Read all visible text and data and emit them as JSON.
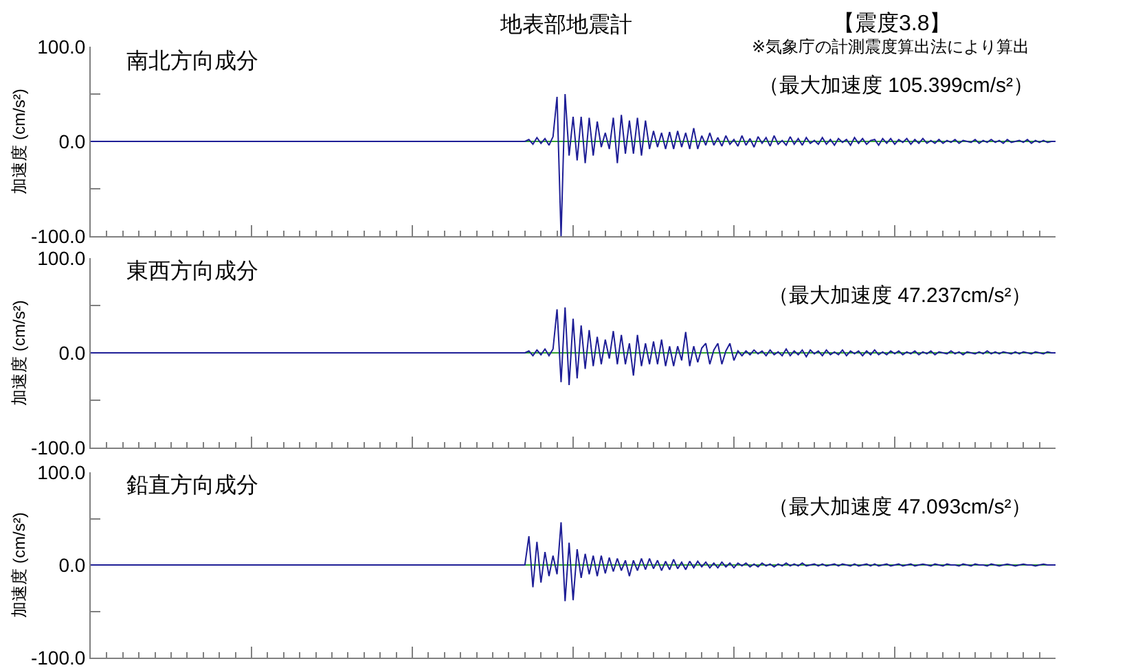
{
  "chart_data": [
    {
      "type": "line",
      "title": "南北方向成分",
      "ylabel": "加速度 (cm/s²)",
      "annotations": [
        "地表部地震計",
        "【震度3.8】",
        "※気象庁の計測震度算出法により算出",
        "（最大加速度 105.399cm/s²）"
      ],
      "tick_labels": "y",
      "ylim": [
        -100,
        100
      ],
      "yticks": [
        {
          "value": 100,
          "label": "100.0"
        },
        {
          "value": 50,
          "label": null
        },
        {
          "value": 0,
          "label": "0.0"
        },
        {
          "value": -50,
          "label": null
        },
        {
          "value": -100,
          "label": "-100.0"
        }
      ],
      "ref_lines": [
        {
          "axis": "y",
          "value": 0,
          "color": "#30a030"
        }
      ],
      "color": "#1e1e96",
      "categories": [
        null,
        null,
        null,
        null,
        null,
        null,
        null,
        null,
        null,
        null,
        null,
        null,
        null,
        null,
        null,
        null,
        null,
        null,
        null,
        null,
        null,
        null,
        null,
        null,
        null,
        null,
        null,
        null,
        null,
        null,
        null,
        null,
        null,
        null,
        null,
        null,
        null,
        null,
        null,
        null,
        null,
        null,
        null,
        null,
        null,
        null,
        null,
        null,
        null,
        null,
        null,
        null,
        null,
        null,
        null,
        null,
        null,
        null,
        null,
        null,
        null,
        null,
        null,
        null,
        null,
        null,
        null,
        null,
        null,
        null,
        null,
        null,
        null,
        null,
        null,
        null,
        null,
        null,
        null,
        null,
        null,
        null,
        null,
        null,
        null,
        null,
        null,
        null,
        null,
        null,
        null,
        null,
        null,
        null,
        null,
        null,
        null,
        null,
        null,
        null,
        null,
        null,
        null,
        null,
        null,
        null,
        null,
        null,
        null,
        null,
        null,
        null,
        null,
        null,
        null,
        null,
        null,
        null,
        null,
        null,
        null,
        null,
        null,
        null,
        null,
        null,
        null,
        null,
        null,
        null,
        null,
        null,
        null,
        null,
        null,
        null,
        null,
        null,
        null,
        null,
        null,
        null,
        null,
        null,
        null,
        null,
        null,
        null,
        null,
        null,
        null,
        null,
        null,
        null,
        null,
        null,
        null,
        null,
        null,
        null,
        null,
        null,
        null,
        null,
        null,
        null,
        null,
        null,
        null,
        null,
        null,
        null,
        null,
        null,
        null,
        null,
        null,
        null,
        null,
        null,
        null,
        null,
        null,
        null,
        null,
        null,
        null,
        null,
        null,
        null,
        null,
        null,
        null,
        null,
        null,
        null,
        null,
        null,
        null,
        null,
        null,
        null,
        null,
        null,
        null,
        null,
        null,
        null,
        null,
        null,
        null,
        null,
        null,
        null,
        null,
        null,
        null,
        null,
        null,
        null,
        null,
        null,
        null,
        null,
        null,
        null,
        null,
        null,
        null,
        null,
        null,
        null,
        null,
        null,
        null,
        null,
        null,
        null,
        null,
        null,
        null
      ],
      "values": [
        0,
        0,
        0,
        0,
        0,
        0,
        0,
        0,
        0,
        0,
        0,
        0,
        0,
        0,
        0,
        0,
        0,
        0,
        0,
        0,
        0,
        0,
        0,
        0,
        0,
        0,
        0,
        0,
        0,
        0,
        0,
        0,
        0,
        0,
        0,
        0,
        0,
        0,
        0,
        0,
        0,
        0,
        0,
        0,
        0,
        0,
        0,
        0,
        0,
        0,
        0,
        0,
        0,
        0,
        0,
        0,
        0,
        0,
        0,
        0,
        0,
        0,
        0,
        0,
        0,
        0,
        0,
        0,
        0,
        0,
        0,
        0,
        0,
        0,
        0,
        0,
        0,
        0,
        0,
        0,
        0,
        0,
        0,
        0,
        0,
        0,
        0,
        0,
        0,
        0,
        0,
        0,
        0,
        0,
        0,
        0,
        0,
        0,
        0,
        0,
        0,
        0,
        0,
        0,
        0,
        0,
        0,
        0,
        0,
        2,
        -3,
        4,
        -2,
        3,
        -4,
        5,
        47,
        -100,
        50,
        -15,
        26,
        -20,
        26,
        -23,
        25,
        -15,
        21,
        -6,
        9,
        -8,
        25,
        -23,
        28,
        -13,
        22,
        -13,
        25,
        -15,
        22,
        -8,
        11,
        -6,
        9,
        -8,
        10,
        -8,
        11,
        -6,
        9,
        -8,
        14,
        -8,
        6,
        -4,
        9,
        -4,
        4,
        -5,
        6,
        -3,
        2,
        -5,
        6,
        -4,
        3,
        -6,
        5,
        -2,
        4,
        -5,
        6,
        -3,
        1,
        -4,
        5,
        -3,
        3,
        -4,
        4,
        -2,
        1,
        -3,
        4,
        -3,
        2,
        -4,
        3,
        -1,
        2,
        -4,
        4,
        -2,
        3,
        -3,
        1,
        2,
        -4,
        3,
        -2,
        3,
        -3,
        2,
        -1,
        3,
        -3,
        2,
        -2,
        3,
        -2,
        1,
        -2,
        2,
        -2,
        1,
        -1,
        2,
        -2,
        1,
        0,
        -1,
        2,
        -2,
        1,
        -1,
        2,
        -1,
        1,
        -2,
        2,
        -1,
        0,
        1,
        -1,
        2,
        -2,
        1,
        -1,
        1,
        -1,
        0,
        0
      ]
    },
    {
      "type": "line",
      "title": "東西方向成分",
      "ylabel": "加速度 (cm/s²)",
      "annotations": [
        "（最大加速度 47.237cm/s²）"
      ],
      "tick_labels": "y",
      "ylim": [
        -100,
        100
      ],
      "yticks": [
        {
          "value": 100,
          "label": "100.0"
        },
        {
          "value": 50,
          "label": null
        },
        {
          "value": 0,
          "label": "0.0"
        },
        {
          "value": -50,
          "label": null
        },
        {
          "value": -100,
          "label": "-100.0"
        }
      ],
      "ref_lines": [
        {
          "axis": "y",
          "value": 0,
          "color": "#30a030"
        }
      ],
      "color": "#1e1e96",
      "categories": [
        null,
        null,
        null,
        null,
        null,
        null,
        null,
        null,
        null,
        null,
        null,
        null,
        null,
        null,
        null,
        null,
        null,
        null,
        null,
        null,
        null,
        null,
        null,
        null,
        null,
        null,
        null,
        null,
        null,
        null,
        null,
        null,
        null,
        null,
        null,
        null,
        null,
        null,
        null,
        null,
        null,
        null,
        null,
        null,
        null,
        null,
        null,
        null,
        null,
        null,
        null,
        null,
        null,
        null,
        null,
        null,
        null,
        null,
        null,
        null,
        null,
        null,
        null,
        null,
        null,
        null,
        null,
        null,
        null,
        null,
        null,
        null,
        null,
        null,
        null,
        null,
        null,
        null,
        null,
        null,
        null,
        null,
        null,
        null,
        null,
        null,
        null,
        null,
        null,
        null,
        null,
        null,
        null,
        null,
        null,
        null,
        null,
        null,
        null,
        null,
        null,
        null,
        null,
        null,
        null,
        null,
        null,
        null,
        null,
        null,
        null,
        null,
        null,
        null,
        null,
        null,
        null,
        null,
        null,
        null,
        null,
        null,
        null,
        null,
        null,
        null,
        null,
        null,
        null,
        null,
        null,
        null,
        null,
        null,
        null,
        null,
        null,
        null,
        null,
        null,
        null,
        null,
        null,
        null,
        null,
        null,
        null,
        null,
        null,
        null,
        null,
        null,
        null,
        null,
        null,
        null,
        null,
        null,
        null,
        null,
        null,
        null,
        null,
        null,
        null,
        null,
        null,
        null,
        null,
        null,
        null,
        null,
        null,
        null,
        null,
        null,
        null,
        null,
        null,
        null,
        null,
        null,
        null,
        null,
        null,
        null,
        null,
        null,
        null,
        null,
        null,
        null,
        null,
        null,
        null,
        null,
        null,
        null,
        null,
        null,
        null,
        null,
        null,
        null,
        null,
        null,
        null,
        null,
        null,
        null,
        null,
        null,
        null,
        null,
        null,
        null,
        null,
        null,
        null,
        null,
        null,
        null,
        null,
        null,
        null,
        null,
        null,
        null,
        null,
        null,
        null,
        null,
        null,
        null,
        null,
        null,
        null,
        null,
        null,
        null,
        null
      ],
      "values": [
        0,
        0,
        0,
        0,
        0,
        0,
        0,
        0,
        0,
        0,
        0,
        0,
        0,
        0,
        0,
        0,
        0,
        0,
        0,
        0,
        0,
        0,
        0,
        0,
        0,
        0,
        0,
        0,
        0,
        0,
        0,
        0,
        0,
        0,
        0,
        0,
        0,
        0,
        0,
        0,
        0,
        0,
        0,
        0,
        0,
        0,
        0,
        0,
        0,
        0,
        0,
        0,
        0,
        0,
        0,
        0,
        0,
        0,
        0,
        0,
        0,
        0,
        0,
        0,
        0,
        0,
        0,
        0,
        0,
        0,
        0,
        0,
        0,
        0,
        0,
        0,
        0,
        0,
        0,
        0,
        0,
        0,
        0,
        0,
        0,
        0,
        0,
        0,
        0,
        0,
        0,
        0,
        0,
        0,
        0,
        0,
        0,
        0,
        0,
        0,
        0,
        0,
        0,
        0,
        0,
        0,
        0,
        0,
        0,
        2,
        -3,
        3,
        -2,
        4,
        -3,
        4,
        46,
        -31,
        48,
        -34,
        36,
        -27,
        29,
        -17,
        24,
        -14,
        17,
        -12,
        14,
        -6,
        23,
        -12,
        19,
        -12,
        10,
        -24,
        19,
        -14,
        10,
        -12,
        12,
        -12,
        14,
        -14,
        7,
        -14,
        7,
        -8,
        22,
        -14,
        7,
        -10,
        5,
        10,
        -12,
        3,
        10,
        -12,
        2,
        10,
        -8,
        2,
        -3,
        2,
        -2,
        3,
        -1,
        2,
        -3,
        3,
        -2,
        1,
        -3,
        4,
        -3,
        2,
        -2,
        3,
        -4,
        3,
        -1,
        2,
        -3,
        3,
        -2,
        1,
        -2,
        3,
        -3,
        2,
        -1,
        2,
        -3,
        2,
        -2,
        3,
        -2,
        1,
        -2,
        2,
        -1,
        2,
        -2,
        1,
        -1,
        2,
        -2,
        1,
        -1,
        2,
        -2,
        1,
        0,
        -1,
        2,
        -1,
        1,
        -2,
        1,
        0,
        -1,
        1,
        -1,
        2,
        -1,
        1,
        -1,
        1,
        0,
        -1,
        1,
        -1,
        1,
        0,
        -1,
        1,
        0,
        -1,
        1,
        0,
        0
      ]
    },
    {
      "type": "line",
      "title": "鉛直方向成分",
      "ylabel": "加速度 (cm/s²)",
      "annotations": [
        "（最大加速度 47.093cm/s²）"
      ],
      "tick_labels": "y",
      "ylim": [
        -100,
        100
      ],
      "yticks": [
        {
          "value": 100,
          "label": "100.0"
        },
        {
          "value": 50,
          "label": null
        },
        {
          "value": 0,
          "label": "0.0"
        },
        {
          "value": -50,
          "label": null
        },
        {
          "value": -100,
          "label": "-100.0"
        }
      ],
      "ref_lines": [
        {
          "axis": "y",
          "value": 0,
          "color": "#30a030"
        }
      ],
      "color": "#1e1e96",
      "categories": [
        null,
        null,
        null,
        null,
        null,
        null,
        null,
        null,
        null,
        null,
        null,
        null,
        null,
        null,
        null,
        null,
        null,
        null,
        null,
        null,
        null,
        null,
        null,
        null,
        null,
        null,
        null,
        null,
        null,
        null,
        null,
        null,
        null,
        null,
        null,
        null,
        null,
        null,
        null,
        null,
        null,
        null,
        null,
        null,
        null,
        null,
        null,
        null,
        null,
        null,
        null,
        null,
        null,
        null,
        null,
        null,
        null,
        null,
        null,
        null,
        null,
        null,
        null,
        null,
        null,
        null,
        null,
        null,
        null,
        null,
        null,
        null,
        null,
        null,
        null,
        null,
        null,
        null,
        null,
        null,
        null,
        null,
        null,
        null,
        null,
        null,
        null,
        null,
        null,
        null,
        null,
        null,
        null,
        null,
        null,
        null,
        null,
        null,
        null,
        null,
        null,
        null,
        null,
        null,
        null,
        null,
        null,
        null,
        null,
        null,
        null,
        null,
        null,
        null,
        null,
        null,
        null,
        null,
        null,
        null,
        null,
        null,
        null,
        null,
        null,
        null,
        null,
        null,
        null,
        null,
        null,
        null,
        null,
        null,
        null,
        null,
        null,
        null,
        null,
        null,
        null,
        null,
        null,
        null,
        null,
        null,
        null,
        null,
        null,
        null,
        null,
        null,
        null,
        null,
        null,
        null,
        null,
        null,
        null,
        null,
        null,
        null,
        null,
        null,
        null,
        null,
        null,
        null,
        null,
        null,
        null,
        null,
        null,
        null,
        null,
        null,
        null,
        null,
        null,
        null,
        null,
        null,
        null,
        null,
        null,
        null,
        null,
        null,
        null,
        null,
        null,
        null,
        null,
        null,
        null,
        null,
        null,
        null,
        null,
        null,
        null,
        null,
        null,
        null,
        null,
        null,
        null,
        null,
        null,
        null,
        null,
        null,
        null,
        null,
        null,
        null,
        null,
        null,
        null,
        null,
        null,
        null,
        null,
        null,
        null,
        null,
        null,
        null,
        null,
        null,
        null,
        null,
        null,
        null,
        null,
        null,
        null,
        null,
        null,
        null,
        null
      ],
      "values": [
        0,
        0,
        0,
        0,
        0,
        0,
        0,
        0,
        0,
        0,
        0,
        0,
        0,
        0,
        0,
        0,
        0,
        0,
        0,
        0,
        0,
        0,
        0,
        0,
        0,
        0,
        0,
        0,
        0,
        0,
        0,
        0,
        0,
        0,
        0,
        0,
        0,
        0,
        0,
        0,
        0,
        0,
        0,
        0,
        0,
        0,
        0,
        0,
        0,
        0,
        0,
        0,
        0,
        0,
        0,
        0,
        0,
        0,
        0,
        0,
        0,
        0,
        0,
        0,
        0,
        0,
        0,
        0,
        0,
        0,
        0,
        0,
        0,
        0,
        0,
        0,
        0,
        0,
        0,
        0,
        0,
        0,
        0,
        0,
        0,
        0,
        0,
        0,
        0,
        0,
        0,
        0,
        0,
        0,
        0,
        0,
        0,
        0,
        0,
        0,
        0,
        0,
        0,
        0,
        0,
        0,
        0,
        0,
        0,
        31,
        -24,
        25,
        -19,
        14,
        -12,
        10,
        -10,
        46,
        -39,
        24,
        -38,
        17,
        -14,
        12,
        -10,
        10,
        -12,
        10,
        -9,
        8,
        -7,
        7,
        -6,
        5,
        -12,
        5,
        -6,
        7,
        -5,
        7,
        -4,
        5,
        -6,
        4,
        -5,
        6,
        -4,
        3,
        -5,
        4,
        -3,
        4,
        -2,
        3,
        -3,
        2,
        -3,
        3,
        -2,
        2,
        -3,
        2,
        -1,
        2,
        -2,
        1,
        -2,
        2,
        -1,
        1,
        -2,
        1,
        -1,
        2,
        -1,
        1,
        -1,
        2,
        -1,
        0,
        1,
        -1,
        1,
        -1,
        0,
        1,
        -1,
        1,
        0,
        -1,
        1,
        -1,
        0,
        1,
        -1,
        1,
        -1,
        0,
        1,
        -1,
        0,
        1,
        -1,
        0,
        1,
        -1,
        0,
        1,
        0,
        -1,
        1,
        0,
        -1,
        1,
        0,
        0,
        -1,
        1,
        0,
        -1,
        1,
        0,
        0,
        -1,
        1,
        0,
        -1,
        0,
        1,
        0,
        -1,
        0,
        1,
        0,
        0,
        -1,
        0,
        1,
        0,
        0,
        0
      ]
    }
  ]
}
